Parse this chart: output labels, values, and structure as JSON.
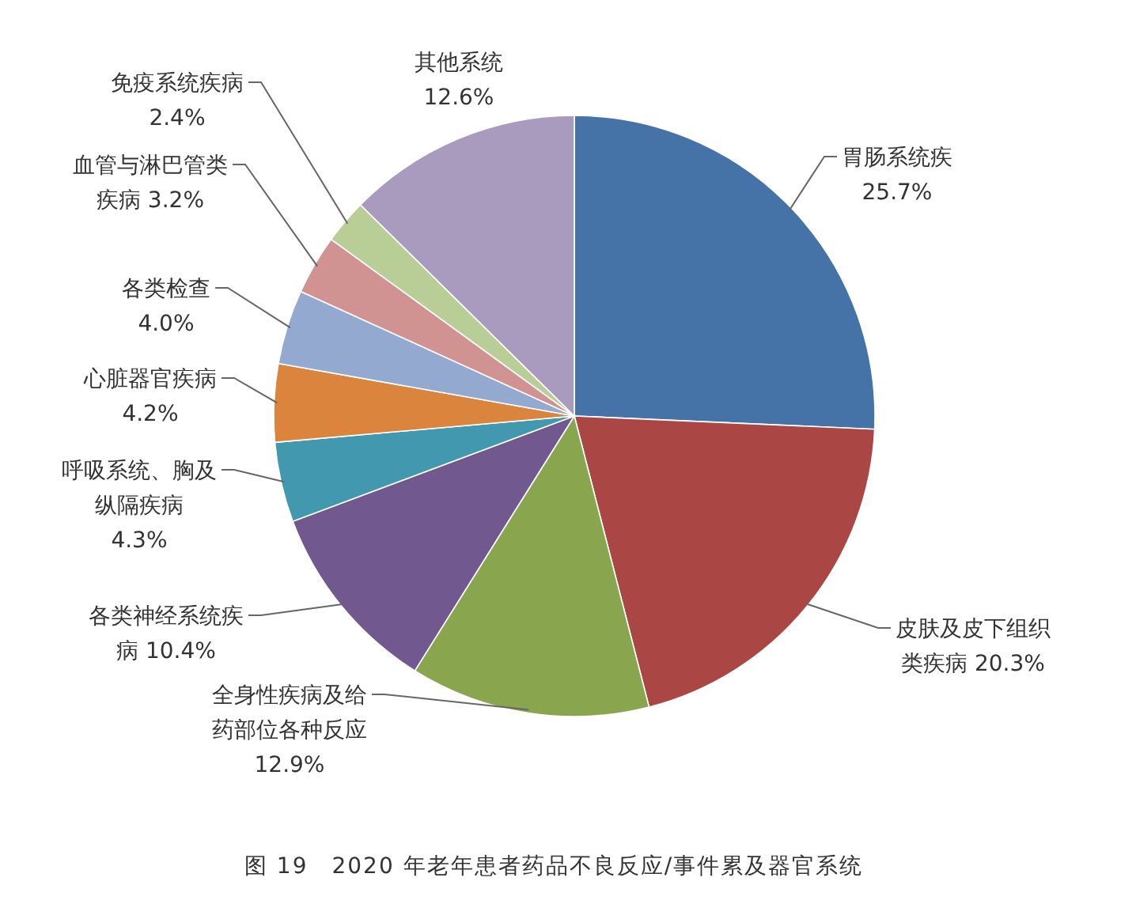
{
  "chart_data": {
    "type": "pie",
    "categories": [
      "胃肠系统疾",
      "皮肤及皮下组织类疾病",
      "全身性疾病及给药部位各种反应",
      "各类神经系统疾病",
      "呼吸系统、胸及纵隔疾病",
      "心脏器官疾病",
      "各类检查",
      "血管与淋巴管类疾病",
      "免疫系统疾病",
      "其他系统"
    ],
    "values": [
      25.7,
      20.3,
      12.9,
      10.4,
      4.3,
      4.2,
      4.0,
      3.2,
      2.4,
      12.6
    ],
    "colors": [
      "#4572a7",
      "#aa4643",
      "#89a54e",
      "#71588f",
      "#4198af",
      "#db843d",
      "#93a9cf",
      "#d19392",
      "#b9cd96",
      "#a99bbd"
    ],
    "value_labels": [
      "25.7%",
      "20.3%",
      "12.9%",
      "10.4%",
      "4.3%",
      "4.2%",
      "4.0%",
      "3.2%",
      "2.4%",
      "12.6%"
    ],
    "annotations": [
      "图 19　2020 年老年患者药品不良反应/事件累及器官系统"
    ]
  }
}
